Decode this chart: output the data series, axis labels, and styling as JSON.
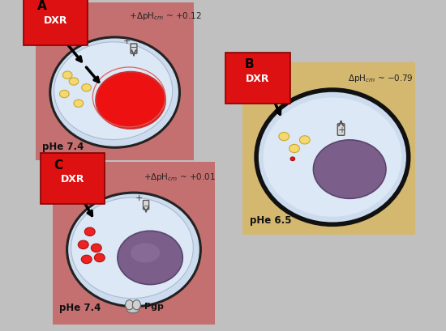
{
  "fig_bg": "#c0c0c0",
  "panel_A": {
    "bg": "#c47070",
    "label": "A",
    "cell_fc": "#ccdcee",
    "cell_ec": "#222222",
    "nucleus_fc": "#ee1111",
    "nucleus_ec": "#cc3030",
    "vesicle_fc": "#f5d870",
    "vesicle_ec": "#c8a830",
    "dxr_fc": "#dd1111",
    "dxr_ec": "#880000",
    "phe_text": "pHe 7.4",
    "delta_text": "+ ΔpH$_{cm}$ ~ +0.12"
  },
  "panel_B": {
    "bg": "#d4b870",
    "label": "B",
    "cell_fc": "#ccdcee",
    "cell_ec": "#111111",
    "nucleus_fc": "#7b5e8a",
    "nucleus_ec": "#5a4570",
    "vesicle_fc": "#f5d870",
    "vesicle_ec": "#c8a830",
    "dxr_fc": "#dd1111",
    "dxr_ec": "#880000",
    "phe_text": "pHe 6.5",
    "delta_text": "ΔpH$_{cm}$ ~ −0.79"
  },
  "panel_C": {
    "bg": "#c47070",
    "label": "C",
    "cell_fc": "#ccdcee",
    "cell_ec": "#222222",
    "nucleus_fc": "#7b5e8a",
    "nucleus_ec": "#5a4570",
    "vesicle_fc": "#ee2222",
    "vesicle_ec": "#aa1111",
    "dxr_fc": "#dd1111",
    "dxr_ec": "#880000",
    "phe_text": "pHe 7.4",
    "pgp_text": "Pgp",
    "delta_text": "+ ΔpH$_{cm}$ ~ +0.01"
  }
}
